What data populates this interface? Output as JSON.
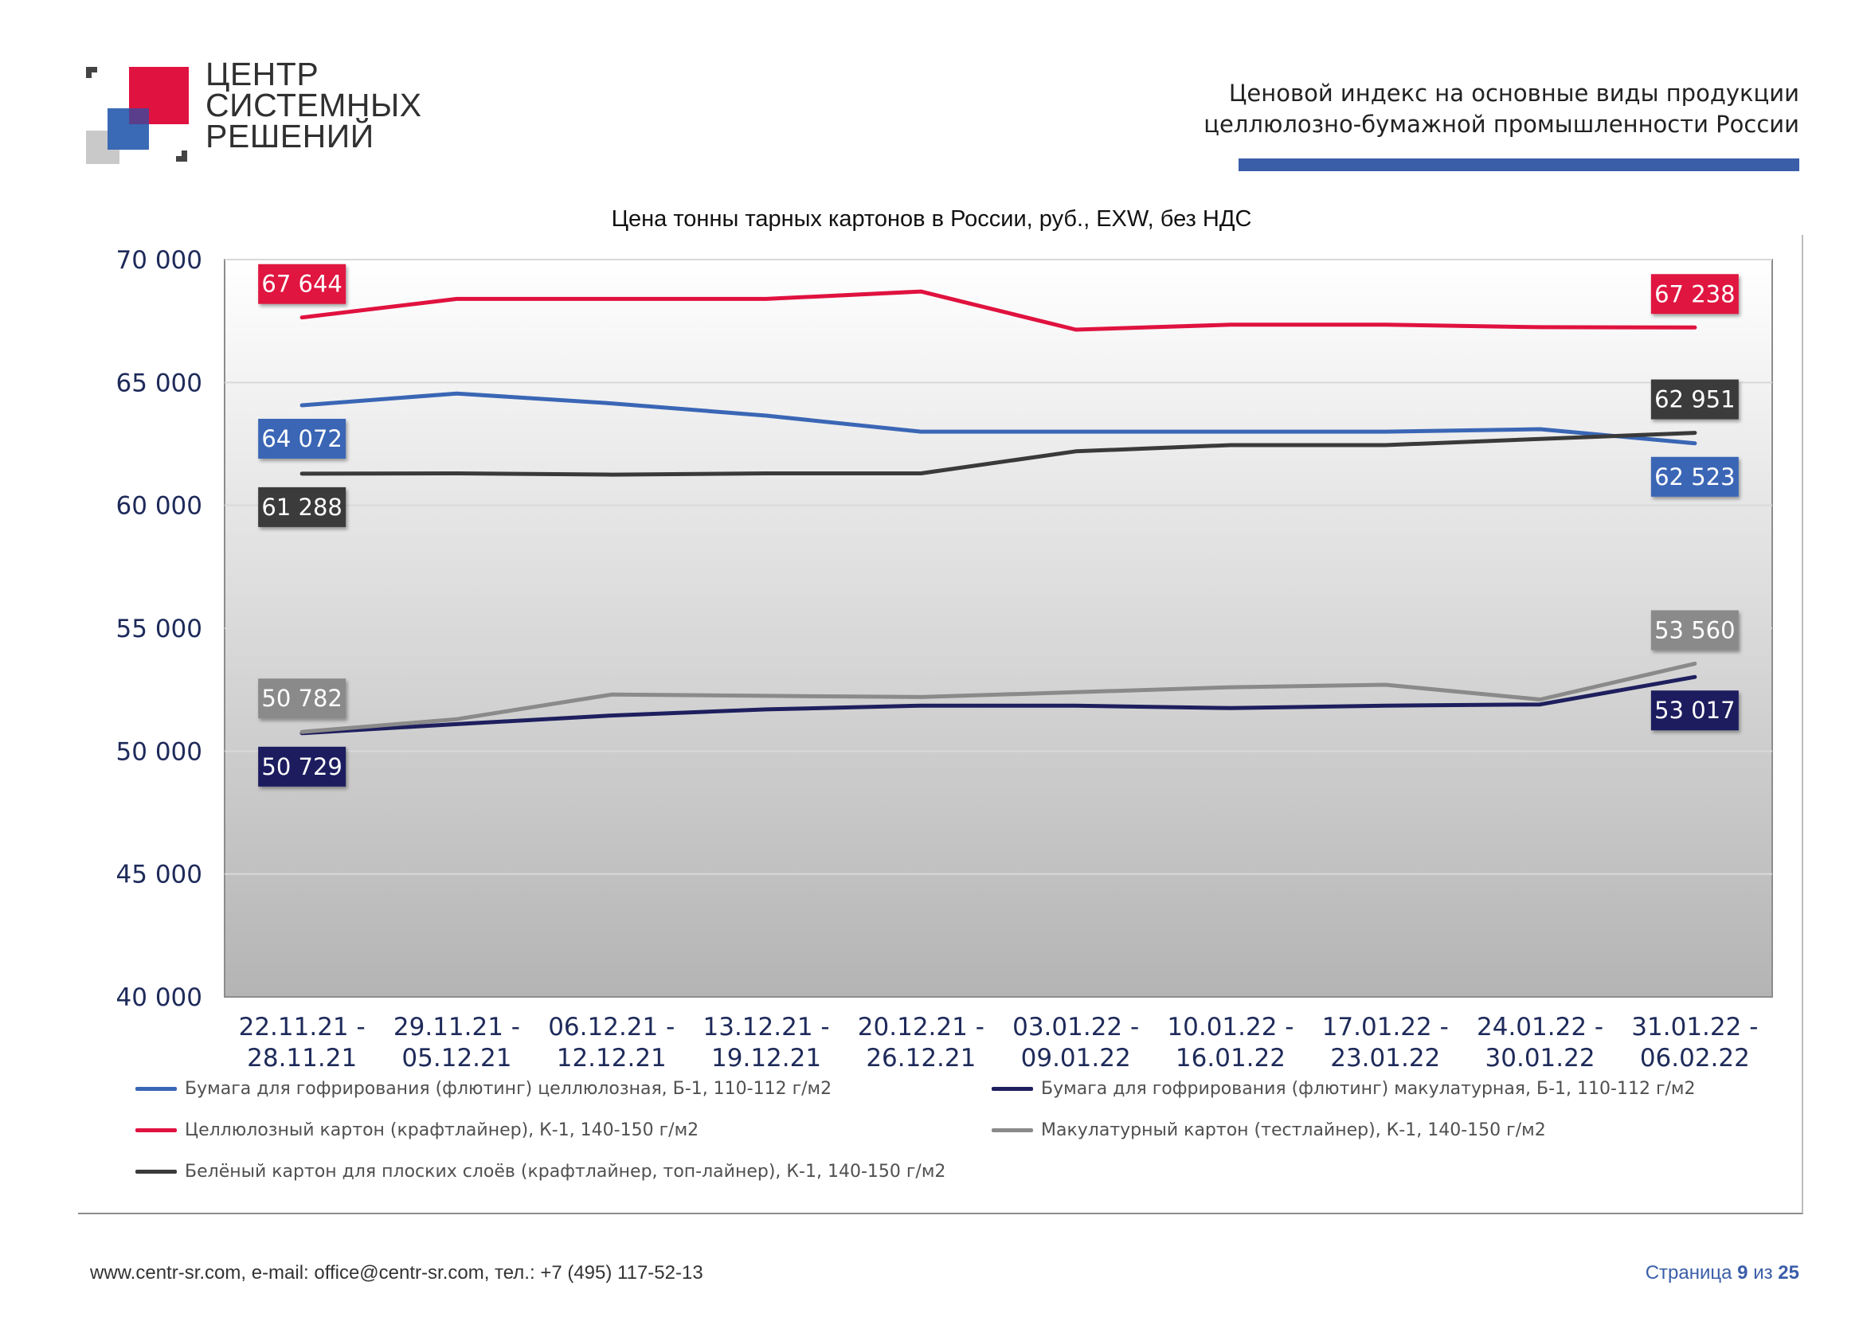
{
  "logo": {
    "lines": [
      "ЦЕНТР",
      "СИСТЕМНЫХ",
      "РЕШЕНИЙ"
    ]
  },
  "header": {
    "title_line1": "Ценовой  индекс  на  основные виды продукции",
    "title_line2": "целлюлозно-бумажной промышленности России",
    "accent_color": "#3b5ea9"
  },
  "footer": {
    "contacts": "www.centr-sr.com, e-mail: office@centr-sr.com, тел.: +7 (495) 117-52-13",
    "page_word": "Страница",
    "page_current": "9",
    "page_of": "из",
    "page_total": "25"
  },
  "chart_data": {
    "type": "line",
    "title": "Цена тонны тарных картонов в России, руб., EXW, без НДС",
    "xlabel": "",
    "ylabel": "",
    "ylim": [
      40000,
      70000
    ],
    "y_ticks": [
      40000,
      45000,
      50000,
      55000,
      60000,
      65000,
      70000
    ],
    "y_tick_labels": [
      "40 000",
      "45 000",
      "50 000",
      "55 000",
      "60 000",
      "65 000",
      "70 000"
    ],
    "grid": true,
    "legend_position": "bottom",
    "categories": [
      [
        "22.11.21 -",
        "28.11.21"
      ],
      [
        "29.11.21 -",
        "05.12.21"
      ],
      [
        "06.12.21 -",
        "12.12.21"
      ],
      [
        "13.12.21 -",
        "19.12.21"
      ],
      [
        "20.12.21 -",
        "26.12.21"
      ],
      [
        "03.01.22 -",
        "09.01.22"
      ],
      [
        "10.01.22 -",
        "16.01.22"
      ],
      [
        "17.01.22 -",
        "23.01.22"
      ],
      [
        "24.01.22 -",
        "30.01.22"
      ],
      [
        "31.01.22 -",
        "06.02.22"
      ]
    ],
    "series": [
      {
        "name": "Бумага для гофрирования (флютинг) целлюлозная, Б-1, 110-112 г/м2",
        "color": "#3a66b5",
        "values": [
          64072,
          64550,
          64150,
          63650,
          63000,
          63000,
          63000,
          63000,
          63100,
          62523
        ],
        "start_label": "64 072",
        "end_label": "62 523",
        "start_label_offset": 1,
        "end_label_offset": 1
      },
      {
        "name": "Бумага для гофрирования (флютинг) макулатурная, Б-1, 110-112 г/м2",
        "color": "#1e1f5e",
        "values": [
          50729,
          51100,
          51450,
          51700,
          51850,
          51850,
          51750,
          51850,
          51900,
          53017
        ],
        "start_label": "50 729",
        "end_label": "53 017",
        "start_label_offset": 1,
        "end_label_offset": 1
      },
      {
        "name": "Целлюлозный картон (крафтлайнер), К-1, 140-150 г/м2",
        "color": "#e0123f",
        "values": [
          67644,
          68400,
          68400,
          68400,
          68700,
          67150,
          67350,
          67350,
          67250,
          67238
        ],
        "start_label": "67 644",
        "end_label": "67 238",
        "start_label_offset": -1,
        "end_label_offset": -1
      },
      {
        "name": "Макулатурный картон (тестлайнер), К-1, 140-150 г/м2",
        "color": "#8a8a8a",
        "values": [
          50782,
          51300,
          52300,
          52250,
          52200,
          52400,
          52600,
          52700,
          52100,
          53560
        ],
        "start_label": "50 782",
        "end_label": "53 560",
        "start_label_offset": -1,
        "end_label_offset": -1
      },
      {
        "name": "Белёный картон для плоских слоёв (крафтлайнер, топ-лайнер), К-1, 140-150 г/м2",
        "color": "#3a3a3a",
        "values": [
          61288,
          61300,
          61250,
          61300,
          61300,
          62200,
          62450,
          62450,
          62700,
          62951
        ],
        "start_label": "61 288",
        "end_label": "62 951",
        "start_label_offset": 1,
        "end_label_offset": -1
      }
    ]
  }
}
